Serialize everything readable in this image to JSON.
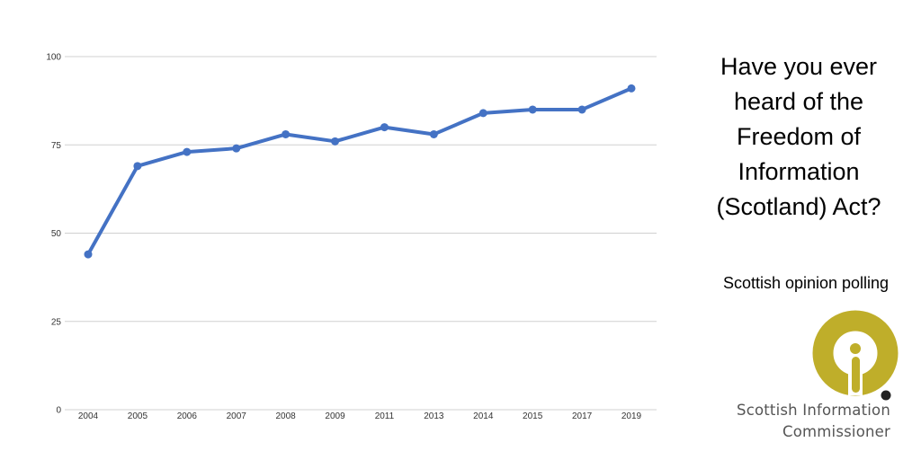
{
  "chart_data": {
    "type": "line",
    "title": "Have you ever heard of the Freedom of Information (Scotland) Act?",
    "title_lines": [
      "Have you ever",
      "heard of the",
      "Freedom of",
      "Information",
      "(Scotland) Act?"
    ],
    "subtitle": "Scottish opinion polling",
    "xlabel": "",
    "ylabel": "",
    "categories": [
      "2004",
      "2005",
      "2006",
      "2007",
      "2008",
      "2009",
      "2011",
      "2013",
      "2014",
      "2015",
      "2017",
      "2019"
    ],
    "series": [
      {
        "values": [
          44,
          69,
          73,
          74,
          78,
          76,
          80,
          78,
          84,
          85,
          85,
          91
        ],
        "color": "#4472c4"
      }
    ],
    "ylim": [
      0,
      100
    ],
    "yticks": [
      0,
      25,
      50,
      75,
      100
    ],
    "grid": true,
    "legend": "none"
  },
  "logo": {
    "line1": "Scottish Information",
    "line2": "Commissioner",
    "color": "#bfae2a",
    "icon": "sic-logo-icon"
  }
}
